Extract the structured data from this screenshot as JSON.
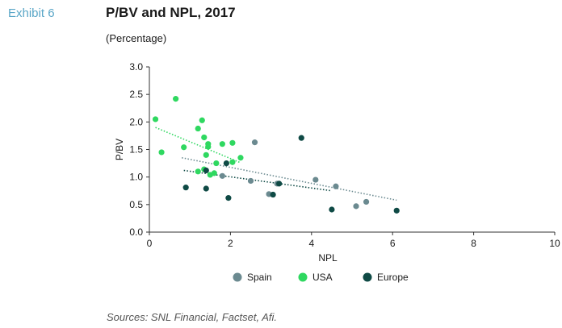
{
  "exhibit": "Exhibit 6",
  "title": "P/BV and NPL, 2017",
  "subtitle": "(Percentage)",
  "sources": "Sources: SNL Financial, Factset, Afi.",
  "chart_data": {
    "type": "scatter",
    "xlabel": "NPL",
    "ylabel": "P/BV",
    "xlim": [
      0,
      10
    ],
    "ylim": [
      0,
      3.0
    ],
    "x_ticks": [
      0,
      2,
      4,
      6,
      8,
      10
    ],
    "x_tick_labels": [
      "0",
      "2",
      "4",
      "6",
      "8",
      "10"
    ],
    "y_ticks": [
      0,
      0.5,
      1.0,
      1.5,
      2.0,
      2.5,
      3.0
    ],
    "y_tick_labels": [
      "0.0",
      "0.5",
      "1.0",
      "1.5",
      "2.0",
      "2.5",
      "3.0"
    ],
    "grid": false,
    "legend_position": "bottom",
    "series": [
      {
        "name": "Spain",
        "color": "#6b8a90",
        "points": [
          [
            2.6,
            1.63
          ],
          [
            1.8,
            1.02
          ],
          [
            2.5,
            0.93
          ],
          [
            2.95,
            0.69
          ],
          [
            3.15,
            0.88
          ],
          [
            4.1,
            0.95
          ],
          [
            4.6,
            0.83
          ],
          [
            5.1,
            0.47
          ],
          [
            5.35,
            0.55
          ]
        ],
        "trend": [
          [
            0.8,
            1.35
          ],
          [
            6.1,
            0.58
          ]
        ]
      },
      {
        "name": "USA",
        "color": "#2fd860",
        "points": [
          [
            0.15,
            2.05
          ],
          [
            0.3,
            1.45
          ],
          [
            0.65,
            2.42
          ],
          [
            0.85,
            1.54
          ],
          [
            1.2,
            1.88
          ],
          [
            1.3,
            2.03
          ],
          [
            1.35,
            1.72
          ],
          [
            1.45,
            1.6
          ],
          [
            1.45,
            1.55
          ],
          [
            1.4,
            1.4
          ],
          [
            1.2,
            1.1
          ],
          [
            1.5,
            1.04
          ],
          [
            1.6,
            1.07
          ],
          [
            1.65,
            1.25
          ],
          [
            1.8,
            1.6
          ],
          [
            2.05,
            1.62
          ],
          [
            2.05,
            1.27
          ],
          [
            2.25,
            1.35
          ],
          [
            1.35,
            1.14
          ]
        ],
        "trend": [
          [
            0.15,
            1.9
          ],
          [
            2.25,
            1.26
          ]
        ]
      },
      {
        "name": "Europe",
        "color": "#0f4a45",
        "points": [
          [
            0.9,
            0.81
          ],
          [
            1.4,
            0.79
          ],
          [
            1.4,
            1.12
          ],
          [
            1.9,
            1.25
          ],
          [
            1.95,
            0.62
          ],
          [
            3.05,
            0.68
          ],
          [
            3.2,
            0.88
          ],
          [
            3.75,
            1.71
          ],
          [
            4.5,
            0.41
          ],
          [
            6.1,
            0.39
          ]
        ],
        "trend": [
          [
            0.85,
            1.12
          ],
          [
            4.5,
            0.75
          ]
        ]
      }
    ]
  }
}
